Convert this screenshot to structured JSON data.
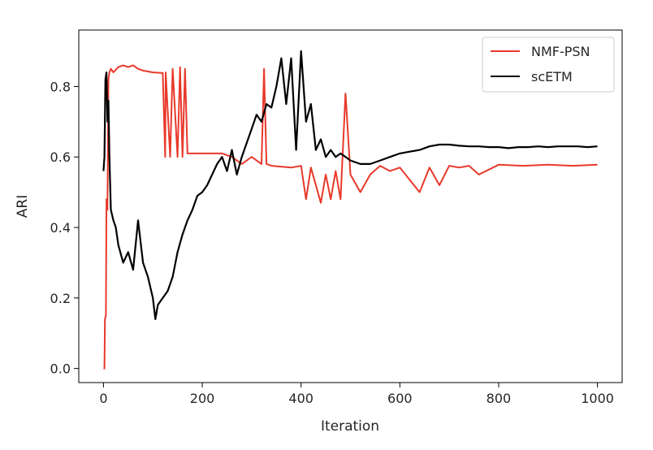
{
  "chart_data": {
    "type": "line",
    "title": "",
    "xlabel": "Iteration",
    "ylabel": "ARI",
    "xlim": [
      -50,
      1050
    ],
    "ylim": [
      -0.04,
      0.96
    ],
    "xticks": [
      0,
      200,
      400,
      600,
      800,
      1000
    ],
    "yticks": [
      0.0,
      0.2,
      0.4,
      0.6,
      0.8
    ],
    "xtick_labels": [
      "0",
      "200",
      "400",
      "600",
      "800",
      "1000"
    ],
    "ytick_labels": [
      "0.0",
      "0.2",
      "0.4",
      "0.6",
      "0.8"
    ],
    "grid": false,
    "legend": {
      "placement": "top-right",
      "entries": [
        "NMF-PSN",
        "scETM"
      ]
    },
    "series": [
      {
        "name": "NMF-PSN",
        "color": "#e8392b",
        "x": [
          0,
          2,
          3,
          5,
          6,
          8,
          10,
          12,
          15,
          20,
          30,
          40,
          50,
          60,
          70,
          80,
          100,
          120,
          125,
          126,
          135,
          140,
          150,
          155,
          160,
          165,
          170,
          180,
          200,
          240,
          260,
          280,
          300,
          320,
          325,
          330,
          340,
          380,
          400,
          410,
          420,
          440,
          450,
          460,
          470,
          480,
          490,
          500,
          520,
          540,
          560,
          580,
          600,
          640,
          660,
          680,
          700,
          720,
          740,
          760,
          800,
          850,
          900,
          950,
          1000
        ],
        "y": [
          0.0,
          0.0,
          0.14,
          0.15,
          0.48,
          0.45,
          0.82,
          0.84,
          0.85,
          0.84,
          0.855,
          0.86,
          0.855,
          0.86,
          0.85,
          0.845,
          0.84,
          0.838,
          0.6,
          0.84,
          0.6,
          0.85,
          0.6,
          0.855,
          0.6,
          0.85,
          0.61,
          0.61,
          0.61,
          0.61,
          0.6,
          0.58,
          0.6,
          0.58,
          0.85,
          0.58,
          0.575,
          0.57,
          0.575,
          0.48,
          0.57,
          0.47,
          0.55,
          0.48,
          0.56,
          0.48,
          0.78,
          0.55,
          0.5,
          0.55,
          0.575,
          0.56,
          0.57,
          0.5,
          0.57,
          0.52,
          0.575,
          0.57,
          0.575,
          0.55,
          0.578,
          0.575,
          0.578,
          0.575,
          0.578
        ]
      },
      {
        "name": "scETM",
        "color": "#000000",
        "x": [
          0,
          2,
          4,
          6,
          8,
          10,
          12,
          15,
          20,
          25,
          30,
          40,
          50,
          60,
          70,
          80,
          90,
          100,
          105,
          110,
          120,
          130,
          140,
          150,
          160,
          170,
          180,
          190,
          200,
          210,
          220,
          230,
          240,
          250,
          260,
          270,
          280,
          290,
          300,
          310,
          320,
          330,
          340,
          350,
          360,
          370,
          380,
          390,
          400,
          410,
          420,
          430,
          440,
          450,
          460,
          470,
          480,
          490,
          500,
          520,
          540,
          560,
          580,
          600,
          620,
          640,
          660,
          680,
          700,
          720,
          740,
          760,
          780,
          800,
          820,
          840,
          860,
          880,
          900,
          920,
          940,
          960,
          980,
          1000
        ],
        "y": [
          0.56,
          0.6,
          0.82,
          0.84,
          0.7,
          0.76,
          0.6,
          0.45,
          0.42,
          0.4,
          0.35,
          0.3,
          0.33,
          0.28,
          0.42,
          0.3,
          0.26,
          0.2,
          0.14,
          0.18,
          0.2,
          0.22,
          0.26,
          0.33,
          0.38,
          0.42,
          0.45,
          0.49,
          0.5,
          0.52,
          0.55,
          0.58,
          0.6,
          0.56,
          0.62,
          0.55,
          0.6,
          0.64,
          0.68,
          0.72,
          0.7,
          0.75,
          0.74,
          0.8,
          0.88,
          0.75,
          0.88,
          0.62,
          0.9,
          0.7,
          0.75,
          0.62,
          0.65,
          0.6,
          0.62,
          0.6,
          0.61,
          0.6,
          0.59,
          0.58,
          0.58,
          0.59,
          0.6,
          0.61,
          0.615,
          0.62,
          0.63,
          0.635,
          0.635,
          0.632,
          0.63,
          0.63,
          0.628,
          0.628,
          0.625,
          0.628,
          0.628,
          0.63,
          0.628,
          0.63,
          0.63,
          0.63,
          0.628,
          0.63
        ]
      }
    ]
  }
}
